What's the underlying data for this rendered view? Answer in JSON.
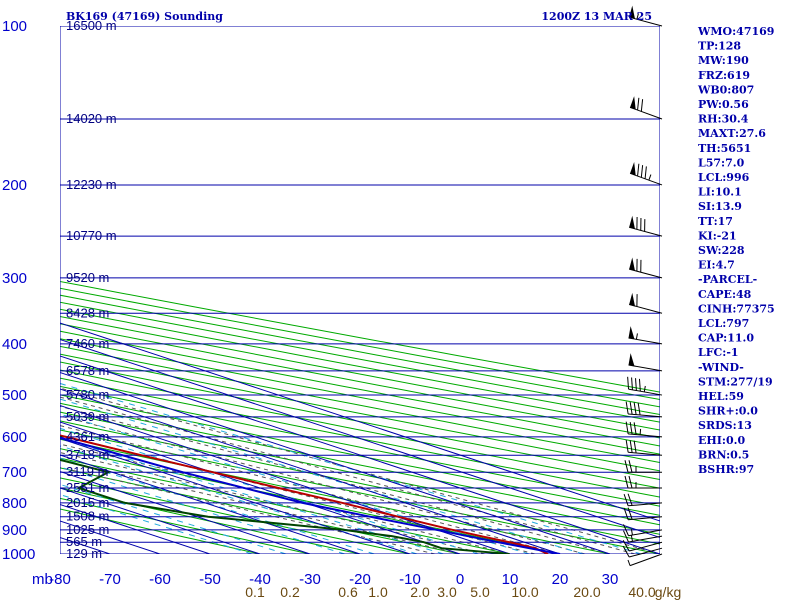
{
  "header": {
    "station": "BK169 (47169) Sounding",
    "time": "1200Z 13 MAR 25"
  },
  "axis": {
    "unit_label": "mb"
  },
  "colors": {
    "grid": "#0000aa",
    "dry_adiabat": "#00aa00",
    "moist_adiabat": "#555555",
    "mixing_ratio": "#22aadd",
    "temperature": "#b80000",
    "dewpoint": "#004400",
    "parcel": "#0000cc",
    "text": "#0000aa",
    "barbs": "#000000"
  },
  "stats": [
    "WMO:47169",
    "TP:128",
    "MW:190",
    "FRZ:619",
    "WB0:807",
    "PW:0.56",
    "RH:30.4",
    "MAXT:27.6",
    "TH:5651",
    "L57:7.0",
    "LCL:996",
    "LI:10.1",
    "SI:13.9",
    "TT:17",
    "KI:-21",
    "SW:228",
    "EI:4.7",
    "-PARCEL-",
    "CAPE:48",
    "CINH:77375",
    "LCL:797",
    "CAP:11.0",
    "LFC:-1",
    "-WIND-",
    "STM:277/19",
    "HEL:59",
    "SHR+:0.0",
    "SRDS:13",
    "EHI:0.0",
    "BRN:0.5",
    "BSHR:97"
  ],
  "chart_data": {
    "type": "line",
    "title": "BK169 (47169) Sounding",
    "subtitle": "1200Z 13 MAR 25",
    "xlabel": "",
    "ylabel": "mb",
    "y_scale": "log",
    "ylim": [
      1000,
      100
    ],
    "xlim": [
      -80,
      40
    ],
    "pressure_levels": [
      100,
      200,
      300,
      400,
      500,
      600,
      700,
      800,
      900,
      1000
    ],
    "temperature_ticks": [
      -80,
      -70,
      -60,
      -50,
      -40,
      -30,
      -20,
      -10,
      0,
      10,
      20,
      30
    ],
    "height_labels": [
      {
        "p": 100,
        "label": "16500 m"
      },
      {
        "p": 150,
        "label": "14020 m"
      },
      {
        "p": 200,
        "label": "12230 m"
      },
      {
        "p": 250,
        "label": "10770 m"
      },
      {
        "p": 300,
        "label": "9520 m"
      },
      {
        "p": 350,
        "label": "8428 m"
      },
      {
        "p": 400,
        "label": "7460 m"
      },
      {
        "p": 450,
        "label": "6578 m"
      },
      {
        "p": 500,
        "label": "5780 m"
      },
      {
        "p": 550,
        "label": "5039 m"
      },
      {
        "p": 600,
        "label": "4361 m"
      },
      {
        "p": 650,
        "label": "3718 m"
      },
      {
        "p": 700,
        "label": "3119 m"
      },
      {
        "p": 750,
        "label": "2551 m"
      },
      {
        "p": 800,
        "label": "2015 m"
      },
      {
        "p": 850,
        "label": "1508 m"
      },
      {
        "p": 900,
        "label": "1025 m"
      },
      {
        "p": 950,
        "label": "565 m"
      },
      {
        "p": 1000,
        "label": "129 m"
      }
    ],
    "mixing_ratio_labels": [
      "0.1",
      "0.2",
      "0.6",
      "1.0",
      "2.0",
      "3.0",
      "5.0",
      "10.0",
      "20.0",
      "40.0",
      "g/kg"
    ],
    "series": [
      {
        "name": "Temperature",
        "points": [
          {
            "p": 1000,
            "t": 17.6
          },
          {
            "p": 975,
            "t": 18.6
          },
          {
            "p": 950,
            "t": 17.0
          },
          {
            "p": 925,
            "t": 15.0
          },
          {
            "p": 900,
            "t": 13.1
          },
          {
            "p": 850,
            "t": 10.2
          },
          {
            "p": 800,
            "t": 7.4
          },
          {
            "p": 750,
            "t": 3.7
          },
          {
            "p": 700,
            "t": 0.1
          },
          {
            "p": 650,
            "t": -3.9
          },
          {
            "p": 600,
            "t": -7.8
          },
          {
            "p": 550,
            "t": -12.9
          },
          {
            "p": 500,
            "t": -18.1
          },
          {
            "p": 450,
            "t": -23.1
          },
          {
            "p": 400,
            "t": -28.9
          },
          {
            "p": 350,
            "t": -35.9
          },
          {
            "p": 300,
            "t": -43.5
          },
          {
            "p": 250,
            "t": -50.8
          },
          {
            "p": 200,
            "t": -54.1
          },
          {
            "p": 175,
            "t": -57.4
          },
          {
            "p": 150,
            "t": -53.9
          },
          {
            "p": 125,
            "t": -55.1
          },
          {
            "p": 115,
            "t": -57.0
          },
          {
            "p": 100,
            "t": -52.2
          }
        ]
      },
      {
        "name": "Dewpoint",
        "points": [
          {
            "p": 1000,
            "t": 9.9
          },
          {
            "p": 975,
            "t": -0.2
          },
          {
            "p": 950,
            "t": -0.1
          },
          {
            "p": 925,
            "t": -2.8
          },
          {
            "p": 900,
            "t": -8.8
          },
          {
            "p": 850,
            "t": -27.8
          },
          {
            "p": 800,
            "t": -36.1
          },
          {
            "p": 750,
            "t": -36.3
          },
          {
            "p": 700,
            "t": -20.8
          },
          {
            "p": 650,
            "t": -23.7
          },
          {
            "p": 600,
            "t": -8.9
          },
          {
            "p": 550,
            "t": -13.6
          },
          {
            "p": 500,
            "t": -16.1
          },
          {
            "p": 450,
            "t": -23.9
          },
          {
            "p": 400,
            "t": -31.6
          },
          {
            "p": 350,
            "t": -38.0
          },
          {
            "p": 300,
            "t": -46.9
          },
          {
            "p": 250,
            "t": -52.8
          },
          {
            "p": 225,
            "t": -60.0
          },
          {
            "p": 200,
            "t": -63.6
          },
          {
            "p": 175,
            "t": -73.2
          },
          {
            "p": 165,
            "t": -83.0
          }
        ]
      },
      {
        "name": "Parcel",
        "points": [
          {
            "p": 1000,
            "t": 20.0
          },
          {
            "p": 950,
            "t": 14.7
          },
          {
            "p": 900,
            "t": 9.9
          },
          {
            "p": 850,
            "t": 4.6
          },
          {
            "p": 800,
            "t": -0.6
          },
          {
            "p": 700,
            "t": -5.9
          },
          {
            "p": 600,
            "t": -9.6
          },
          {
            "p": 500,
            "t": -21.6
          },
          {
            "p": 400,
            "t": -35.9
          },
          {
            "p": 300,
            "t": -54.0
          },
          {
            "p": 200,
            "t": -80.6
          },
          {
            "p": 195,
            "t": -82.0
          }
        ]
      }
    ],
    "wind_barbs": [
      {
        "p": 1000,
        "dir": 250,
        "spd": 5
      },
      {
        "p": 975,
        "dir": 255,
        "spd": 10
      },
      {
        "p": 950,
        "dir": 255,
        "spd": 10
      },
      {
        "p": 925,
        "dir": 260,
        "spd": 15
      },
      {
        "p": 900,
        "dir": 260,
        "spd": 15
      },
      {
        "p": 850,
        "dir": 265,
        "spd": 20
      },
      {
        "p": 800,
        "dir": 265,
        "spd": 20
      },
      {
        "p": 750,
        "dir": 270,
        "spd": 25
      },
      {
        "p": 700,
        "dir": 270,
        "spd": 25
      },
      {
        "p": 650,
        "dir": 275,
        "spd": 30
      },
      {
        "p": 600,
        "dir": 275,
        "spd": 35
      },
      {
        "p": 550,
        "dir": 275,
        "spd": 40
      },
      {
        "p": 500,
        "dir": 280,
        "spd": 45
      },
      {
        "p": 450,
        "dir": 280,
        "spd": 50
      },
      {
        "p": 400,
        "dir": 280,
        "spd": 55
      },
      {
        "p": 350,
        "dir": 285,
        "spd": 60
      },
      {
        "p": 300,
        "dir": 285,
        "spd": 70
      },
      {
        "p": 250,
        "dir": 285,
        "spd": 80
      },
      {
        "p": 200,
        "dir": 290,
        "spd": 85
      },
      {
        "p": 150,
        "dir": 290,
        "spd": 70
      },
      {
        "p": 100,
        "dir": 285,
        "spd": 55
      }
    ]
  }
}
